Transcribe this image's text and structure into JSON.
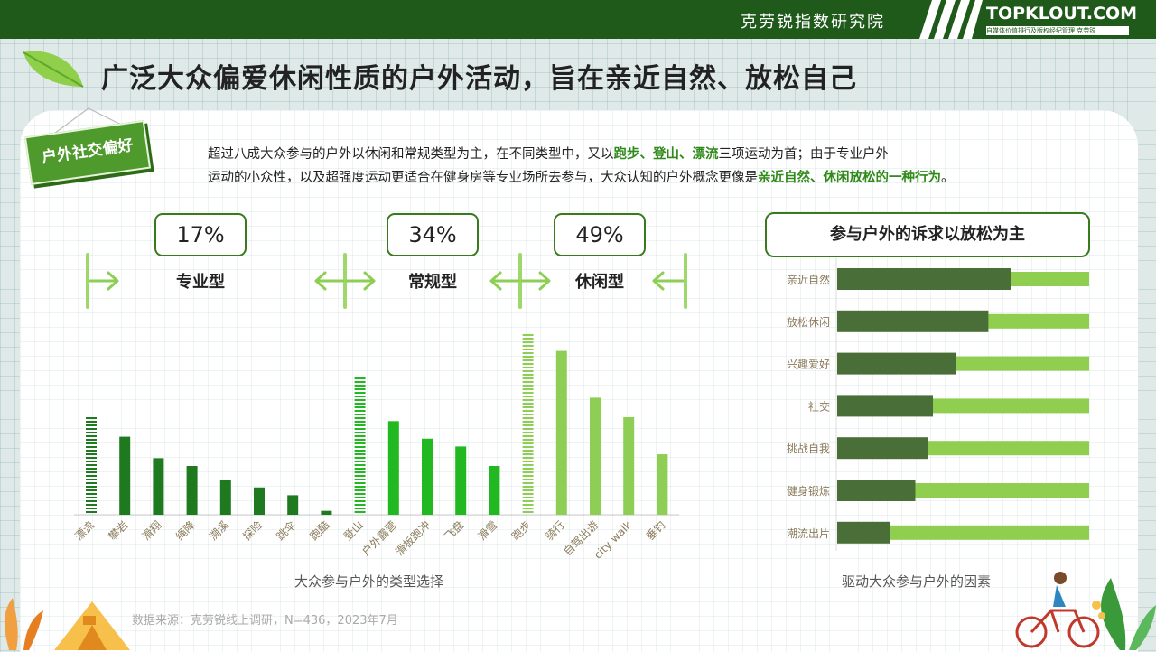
{
  "header": {
    "org_name": "克劳锐指数研究院",
    "logo_text": "TOPKLOUT.COM",
    "logo_sub": "自媒体价值排行及版权经纪管理  克劳锐"
  },
  "title": "广泛大众偏爱休闲性质的户外活动，旨在亲近自然、放松自己",
  "tag_label": "户外社交偏好",
  "description": {
    "p1": "超过八成大众参与的户外以休闲和常规类型为主，在不同类型中，又以",
    "hl1": "跑步、登山、漂流",
    "p2": "三项运动为首；由于专业户外",
    "p3": "运动的小众性，以及超强度运动更适合在健身房等专业场所去参与，大众认知的户外概念更像是",
    "hl2": "亲近自然、休闲放松的一种行为",
    "p4": "。"
  },
  "segments": [
    {
      "pct": "17%",
      "label": "专业型"
    },
    {
      "pct": "34%",
      "label": "常规型"
    },
    {
      "pct": "49%",
      "label": "休闲型"
    }
  ],
  "colors": {
    "dark_green": "#1f7a1f",
    "mid_green": "#22b822",
    "light_green": "#8fce55",
    "hbar_dark": "#4a6e38",
    "hbar_light": "#8fce4e"
  },
  "chart_data": [
    {
      "type": "bar",
      "title": "大众参与户外的类型选择",
      "categories": [
        "漂流",
        "攀岩",
        "滑翔",
        "绳降",
        "溯溪",
        "探险",
        "跳伞",
        "跑酷",
        "登山",
        "户外露营",
        "滑板跑冲",
        "飞盘",
        "滑雪",
        "跑步",
        "骑行",
        "自驾出游",
        "city walk",
        "垂钓"
      ],
      "values": [
        50,
        40,
        29,
        25,
        18,
        14,
        10,
        2,
        70,
        48,
        39,
        35,
        25,
        92,
        84,
        60,
        50,
        31
      ],
      "groups": [
        "专业型",
        "专业型",
        "专业型",
        "专业型",
        "专业型",
        "专业型",
        "专业型",
        "专业型",
        "常规型",
        "常规型",
        "常规型",
        "常规型",
        "常规型",
        "休闲型",
        "休闲型",
        "休闲型",
        "休闲型",
        "休闲型"
      ],
      "highlighted": [
        "漂流",
        "登山",
        "跑步"
      ],
      "ylim": [
        0,
        100
      ]
    },
    {
      "type": "bar",
      "orientation": "horizontal",
      "title": "参与户外的诉求以放松为主",
      "caption": "驱动大众参与户外的因素",
      "categories": [
        "亲近自然",
        "放松休闲",
        "兴趣爱好",
        "社交",
        "挑战自我",
        "健身锻炼",
        "潮流出片"
      ],
      "values": [
        69,
        60,
        47,
        38,
        36,
        31,
        21
      ],
      "xlim": [
        0,
        100
      ]
    }
  ],
  "source": "数据来源：克劳锐线上调研，N=436，2023年7月"
}
